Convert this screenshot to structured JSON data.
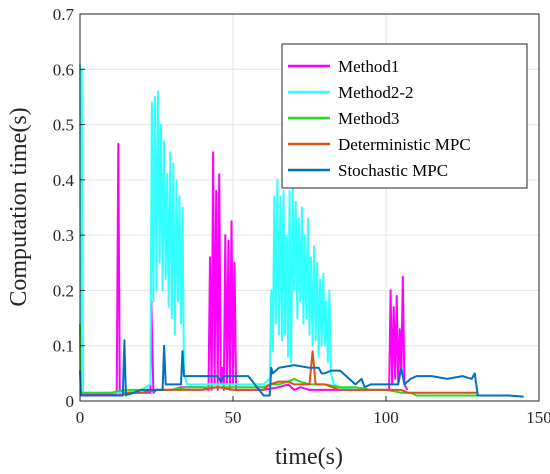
{
  "chart_data": {
    "type": "line",
    "title": "",
    "xlabel": "time(s)",
    "ylabel": "Computation time(s)",
    "xlim": [
      0,
      150
    ],
    "ylim": [
      0,
      0.7
    ],
    "xticks": [
      0,
      50,
      100,
      150
    ],
    "yticks": [
      0,
      0.1,
      0.2,
      0.3,
      0.4,
      0.5,
      0.6,
      0.7
    ],
    "xtick_labels": [
      "0",
      "50",
      "100",
      "150"
    ],
    "ytick_labels": [
      "0",
      "0.1",
      "0.2",
      "0.3",
      "0.4",
      "0.5",
      "0.6",
      "0.7"
    ],
    "grid": true,
    "legend_position": "top-right",
    "series": [
      {
        "name": "Method1",
        "color": "#ff00ff",
        "x": [
          0,
          1,
          12,
          12.5,
          13,
          13.5,
          14,
          20,
          23,
          23.3,
          24,
          25,
          30,
          33,
          35,
          40,
          42,
          42.5,
          43,
          43.5,
          44,
          44.5,
          45,
          45.5,
          46,
          46.5,
          47,
          47.5,
          48,
          48.5,
          49,
          49.5,
          50,
          50.5,
          51,
          55,
          60,
          65,
          68,
          70,
          72,
          75,
          80,
          85,
          90,
          95,
          100,
          101,
          101.5,
          102,
          102.5,
          103,
          103.5,
          104,
          104.5,
          105,
          105.5,
          106,
          107
        ],
        "y": [
          0.01,
          0.012,
          0.012,
          0.465,
          0.012,
          0.015,
          0.015,
          0.015,
          0.015,
          0.18,
          0.015,
          0.02,
          0.02,
          0.025,
          0.025,
          0.025,
          0.02,
          0.26,
          0.02,
          0.45,
          0.03,
          0.38,
          0.02,
          0.41,
          0.03,
          0.06,
          0.02,
          0.3,
          0.03,
          0.29,
          0.02,
          0.325,
          0.03,
          0.25,
          0.02,
          0.02,
          0.02,
          0.025,
          0.03,
          0.02,
          0.025,
          0.02,
          0.02,
          0.02,
          0.02,
          0.02,
          0.02,
          0.02,
          0.2,
          0.03,
          0.17,
          0.04,
          0.19,
          0.03,
          0.13,
          0.05,
          0.225,
          0.03,
          0.02
        ]
      },
      {
        "name": "Method2-2",
        "color": "#33ffff",
        "x": [
          0,
          0.3,
          0.6,
          1,
          2,
          10,
          15,
          20,
          23,
          23.5,
          24,
          24.5,
          25,
          25.5,
          26,
          26.5,
          27,
          27.5,
          28,
          28.5,
          29,
          29.5,
          30,
          30.5,
          31,
          31.5,
          32,
          32.5,
          33,
          33.5,
          34,
          35,
          40,
          45,
          50,
          55,
          60,
          62,
          62.5,
          63,
          63.5,
          64,
          64.5,
          65,
          65.5,
          66,
          66.5,
          67,
          67.5,
          68,
          68.5,
          69,
          69.5,
          70,
          70.5,
          71,
          71.5,
          72,
          72.5,
          73,
          73.5,
          74,
          74.5,
          75,
          75.5,
          76,
          76.5,
          77,
          77.5,
          78,
          78.5,
          79,
          79.5,
          80,
          80.5,
          81,
          81.5,
          82,
          83,
          85,
          90
        ],
        "y": [
          0.61,
          0.01,
          0.6,
          0.015,
          0.015,
          0.015,
          0.015,
          0.02,
          0.03,
          0.54,
          0.18,
          0.55,
          0.2,
          0.56,
          0.25,
          0.5,
          0.2,
          0.47,
          0.22,
          0.41,
          0.17,
          0.45,
          0.15,
          0.43,
          0.12,
          0.4,
          0.18,
          0.37,
          0.14,
          0.35,
          0.05,
          0.03,
          0.03,
          0.03,
          0.03,
          0.03,
          0.03,
          0.04,
          0.2,
          0.09,
          0.37,
          0.14,
          0.4,
          0.12,
          0.37,
          0.11,
          0.38,
          0.12,
          0.3,
          0.08,
          0.38,
          0.07,
          0.39,
          0.2,
          0.36,
          0.15,
          0.33,
          0.18,
          0.35,
          0.14,
          0.3,
          0.15,
          0.33,
          0.12,
          0.26,
          0.1,
          0.28,
          0.11,
          0.25,
          0.08,
          0.22,
          0.1,
          0.23,
          0.1,
          0.18,
          0.07,
          0.2,
          0.05,
          0.03,
          0.025,
          0.02
        ]
      },
      {
        "name": "Method3",
        "color": "#22dd22",
        "x": [
          0,
          0.2,
          0.5,
          1,
          5,
          10,
          15,
          20,
          25,
          30,
          35,
          40,
          45,
          50,
          55,
          60,
          62,
          65,
          68,
          70,
          72,
          75,
          78,
          80,
          85,
          90,
          95,
          100,
          105,
          108,
          110,
          120,
          130
        ],
        "y": [
          0.14,
          0.02,
          0.015,
          0.015,
          0.015,
          0.015,
          0.02,
          0.02,
          0.02,
          0.02,
          0.025,
          0.025,
          0.025,
          0.025,
          0.025,
          0.025,
          0.03,
          0.03,
          0.035,
          0.04,
          0.035,
          0.03,
          0.03,
          0.03,
          0.025,
          0.025,
          0.02,
          0.02,
          0.015,
          0.015,
          0.01,
          0.01,
          0.01
        ]
      },
      {
        "name": "Deterministic MPC",
        "color": "#d95319",
        "x": [
          0,
          1,
          10,
          14,
          15,
          20,
          25,
          30,
          35,
          40,
          45,
          50,
          55,
          60,
          62,
          65,
          68,
          70,
          72,
          75,
          76,
          77,
          78,
          80,
          85,
          90,
          95,
          100,
          105,
          107,
          108,
          110,
          120,
          130
        ],
        "y": [
          0.01,
          0.01,
          0.01,
          0.01,
          0.015,
          0.015,
          0.02,
          0.02,
          0.02,
          0.02,
          0.025,
          0.02,
          0.02,
          0.02,
          0.03,
          0.035,
          0.035,
          0.03,
          0.03,
          0.03,
          0.09,
          0.03,
          0.03,
          0.03,
          0.02,
          0.02,
          0.02,
          0.02,
          0.02,
          0.015,
          0.015,
          0.015,
          0.015,
          0.015
        ]
      },
      {
        "name": "Stochastic MPC",
        "color": "#0072bd",
        "x": [
          0,
          0.3,
          0.6,
          1,
          5,
          10,
          14,
          14.5,
          15,
          15.5,
          16,
          20,
          25,
          27,
          27.5,
          28,
          28.5,
          30,
          33,
          33.5,
          34,
          40,
          45,
          46,
          47,
          50,
          55,
          60,
          62,
          62.5,
          63,
          65,
          70,
          75,
          78,
          79,
          80,
          82,
          85,
          90,
          92,
          93,
          95,
          100,
          104,
          105,
          106,
          108,
          110,
          115,
          120,
          125,
          128,
          129,
          130,
          131,
          135,
          140,
          145
        ],
        "y": [
          0.055,
          0.01,
          0.01,
          0.01,
          0.01,
          0.01,
          0.01,
          0.11,
          0.01,
          0.012,
          0.012,
          0.02,
          0.02,
          0.02,
          0.1,
          0.03,
          0.03,
          0.03,
          0.03,
          0.09,
          0.045,
          0.045,
          0.045,
          0.035,
          0.045,
          0.045,
          0.045,
          0.01,
          0.01,
          0.06,
          0.05,
          0.06,
          0.065,
          0.06,
          0.06,
          0.05,
          0.05,
          0.055,
          0.055,
          0.03,
          0.04,
          0.025,
          0.03,
          0.03,
          0.03,
          0.06,
          0.03,
          0.04,
          0.045,
          0.045,
          0.04,
          0.045,
          0.04,
          0.05,
          0.01,
          0.01,
          0.01,
          0.01,
          0.008
        ]
      }
    ]
  }
}
